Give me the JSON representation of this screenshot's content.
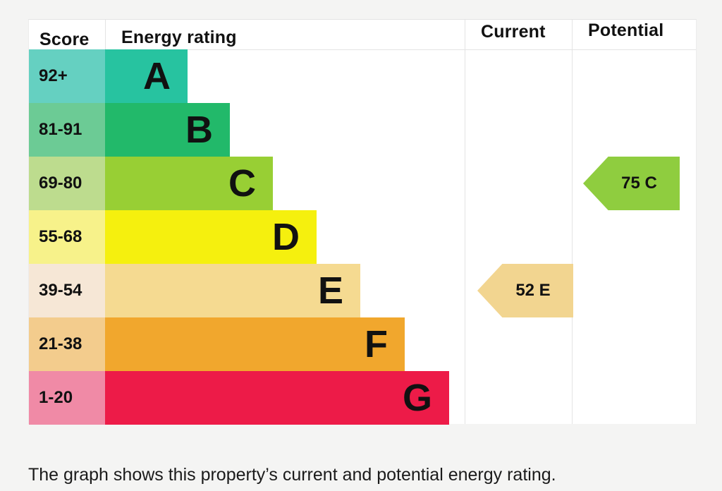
{
  "headers": {
    "score": "Score",
    "energy_rating": "Energy rating",
    "current": "Current",
    "potential": "Potential"
  },
  "chart_data": {
    "type": "bar",
    "bands": [
      {
        "letter": "A",
        "range": "92+",
        "color": "#27c3a0",
        "score_color": "#65d0c1"
      },
      {
        "letter": "B",
        "range": "81-91",
        "color": "#22b96a",
        "score_color": "#6ccb95"
      },
      {
        "letter": "C",
        "range": "69-80",
        "color": "#98cf34",
        "score_color": "#bddc8e"
      },
      {
        "letter": "D",
        "range": "55-68",
        "color": "#f5f00e",
        "score_color": "#f7f28a"
      },
      {
        "letter": "E",
        "range": "39-54",
        "color": "#f5da91",
        "score_color": "#f6e7d6"
      },
      {
        "letter": "F",
        "range": "21-38",
        "color": "#f1a72d",
        "score_color": "#f3cc8d"
      },
      {
        "letter": "G",
        "range": "1-20",
        "color": "#ed1b48",
        "score_color": "#f08aa6"
      }
    ],
    "current": {
      "value": 52,
      "band": "E",
      "label": "52  E",
      "color": "#f2d590"
    },
    "potential": {
      "value": 75,
      "band": "C",
      "label": "75  C",
      "color": "#8fcd3f"
    }
  },
  "caption": "The graph shows this property’s current and potential energy rating."
}
